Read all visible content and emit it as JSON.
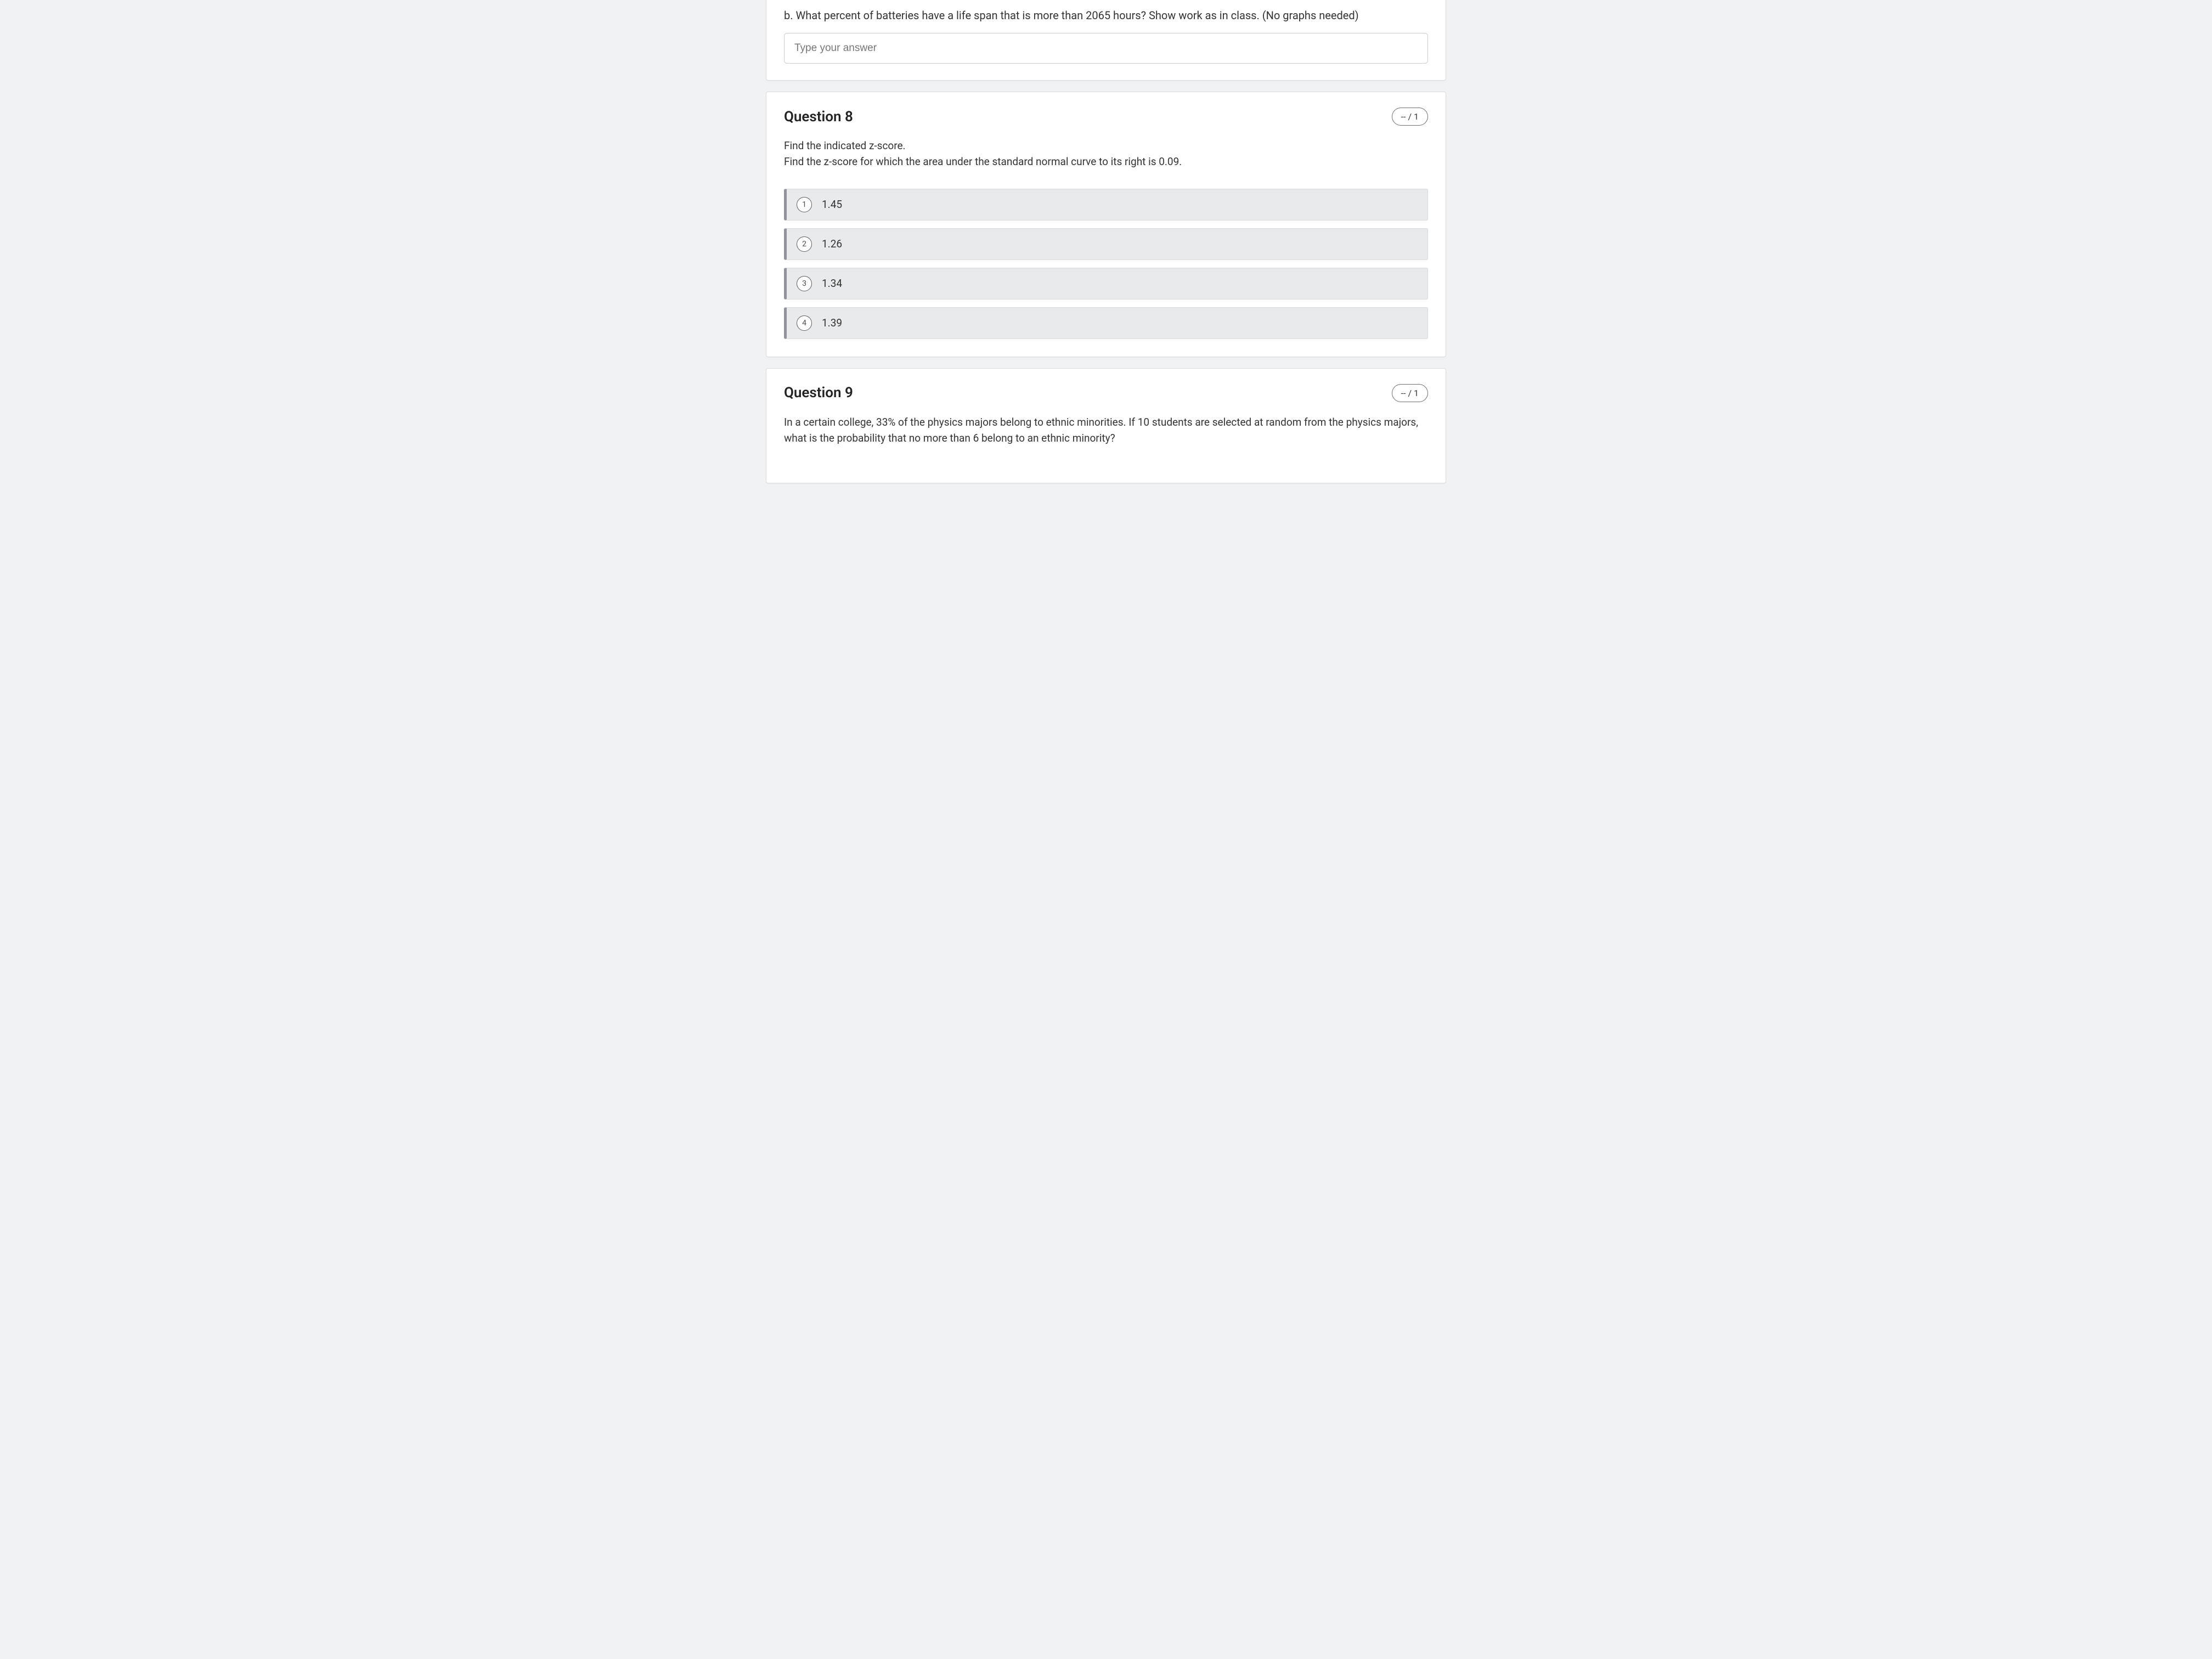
{
  "partial_previous": {
    "sub_label": "b.",
    "text": "What percent of batteries have a life span that is more than 2065 hours? Show work as in class. (No graphs needed)",
    "placeholder": "Type your answer"
  },
  "q8": {
    "title": "Question 8",
    "score": "-- / 1",
    "line1": "Find the indicated z-score.",
    "line2": "Find the z-score for which the area under the standard normal curve to its right is 0.09.",
    "options": [
      {
        "num": "1",
        "label": "1.45"
      },
      {
        "num": "2",
        "label": "1.26"
      },
      {
        "num": "3",
        "label": "1.34"
      },
      {
        "num": "4",
        "label": "1.39"
      }
    ]
  },
  "q9": {
    "title": "Question 9",
    "score": "-- / 1",
    "text": "In a certain college, 33% of the physics majors belong to ethnic minorities. If 10 students are selected at random from the physics majors, what  is the probability that no more than 6 belong to an ethnic minority?"
  },
  "colors": {
    "page_bg": "#f0f2f4",
    "card_bg": "#ffffff",
    "card_border": "#d9dde1",
    "option_bg": "#e8eaec",
    "option_accent": "#8f949a",
    "text": "#2b2b2b"
  }
}
